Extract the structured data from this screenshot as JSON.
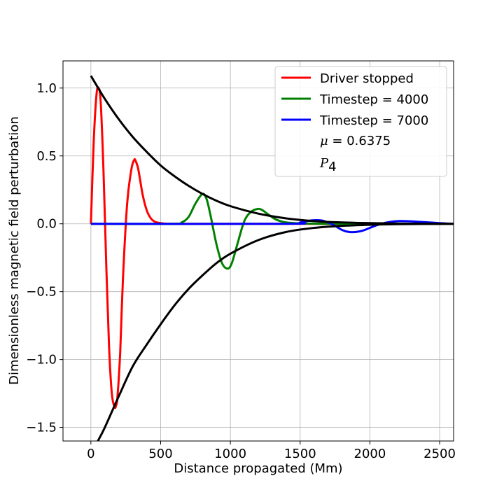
{
  "chart_data": {
    "type": "line",
    "title": "",
    "xlabel": "Distance propagated (Mm)",
    "ylabel": "Dimensionless magnetic field perturbation",
    "xlim": [
      -200,
      2600
    ],
    "ylim": [
      -1.6,
      1.2
    ],
    "xticks": [
      0,
      500,
      1000,
      1500,
      2000,
      2500
    ],
    "yticks": [
      -1.5,
      -1.0,
      -0.5,
      0.0,
      0.5,
      1.0
    ],
    "xtick_labels": [
      "0",
      "500",
      "1000",
      "1500",
      "2000",
      "2500"
    ],
    "ytick_labels": [
      "−1.5",
      "−1.0",
      "−0.5",
      "0.0",
      "0.5",
      "1.0"
    ],
    "grid": true,
    "legend_position": "top-right",
    "series": [
      {
        "name": "Driver stopped",
        "color": "#ff0000",
        "x": [
          0,
          20,
          40,
          55,
          70,
          90,
          110,
          130,
          150,
          170,
          180,
          190,
          210,
          230,
          260,
          290,
          310,
          320,
          340,
          370,
          400,
          430,
          460,
          500,
          550,
          600,
          700,
          900,
          1200,
          2600
        ],
        "y": [
          0,
          0.6,
          0.95,
          1.0,
          0.9,
          0.4,
          -0.3,
          -0.9,
          -1.25,
          -1.35,
          -1.34,
          -1.28,
          -0.95,
          -0.4,
          0.15,
          0.4,
          0.47,
          0.465,
          0.4,
          0.22,
          0.1,
          0.04,
          0.015,
          0.005,
          0.0,
          0.0,
          0.0,
          0.0,
          0.0,
          0.0
        ]
      },
      {
        "name": "Timestep = 4000",
        "color": "#008000",
        "x": [
          0,
          600,
          650,
          700,
          750,
          800,
          830,
          860,
          900,
          940,
          980,
          1010,
          1050,
          1100,
          1150,
          1200,
          1230,
          1270,
          1330,
          1400,
          1500,
          1600,
          1800,
          2600
        ],
        "y": [
          0,
          0,
          0.01,
          0.05,
          0.15,
          0.22,
          0.18,
          0.05,
          -0.15,
          -0.29,
          -0.33,
          -0.29,
          -0.15,
          0.02,
          0.09,
          0.11,
          0.1,
          0.07,
          0.03,
          0.01,
          0.003,
          0.001,
          0.0,
          0.0
        ]
      },
      {
        "name": "Timestep = 7000",
        "color": "#0000ff",
        "x": [
          0,
          1400,
          1500,
          1580,
          1650,
          1700,
          1750,
          1800,
          1850,
          1900,
          1950,
          2000,
          2050,
          2100,
          2150,
          2200,
          2250,
          2300,
          2350,
          2400,
          2500,
          2600
        ],
        "y": [
          0,
          0,
          0.01,
          0.025,
          0.025,
          0.01,
          -0.015,
          -0.045,
          -0.06,
          -0.06,
          -0.05,
          -0.03,
          -0.01,
          0.005,
          0.015,
          0.02,
          0.02,
          0.018,
          0.015,
          0.012,
          0.005,
          0.0
        ]
      }
    ],
    "envelope_series": [
      {
        "color": "#000000",
        "x": [
          0,
          100,
          200,
          300,
          400,
          500,
          600,
          700,
          800,
          900,
          1000,
          1200,
          1400,
          1600,
          1800,
          2000,
          2200,
          2400,
          2600
        ],
        "y": [
          1.09,
          0.92,
          0.77,
          0.64,
          0.53,
          0.43,
          0.35,
          0.28,
          0.22,
          0.17,
          0.13,
          0.075,
          0.04,
          0.02,
          0.01,
          0.005,
          0.002,
          0.001,
          0.0
        ]
      },
      {
        "color": "#000000",
        "x": [
          50,
          100,
          200,
          300,
          400,
          500,
          600,
          700,
          800,
          900,
          1000,
          1200,
          1400,
          1600,
          1800,
          2000,
          2200,
          2400,
          2600
        ],
        "y": [
          -1.6,
          -1.5,
          -1.27,
          -1.05,
          -0.89,
          -0.74,
          -0.6,
          -0.48,
          -0.38,
          -0.29,
          -0.22,
          -0.12,
          -0.06,
          -0.03,
          -0.015,
          -0.007,
          -0.003,
          -0.001,
          0.0
        ]
      }
    ],
    "legend_extra": {
      "mu_symbol": "μ",
      "mu_rest": " = 0.6375",
      "p_main": "P",
      "p_sub": "4"
    }
  }
}
